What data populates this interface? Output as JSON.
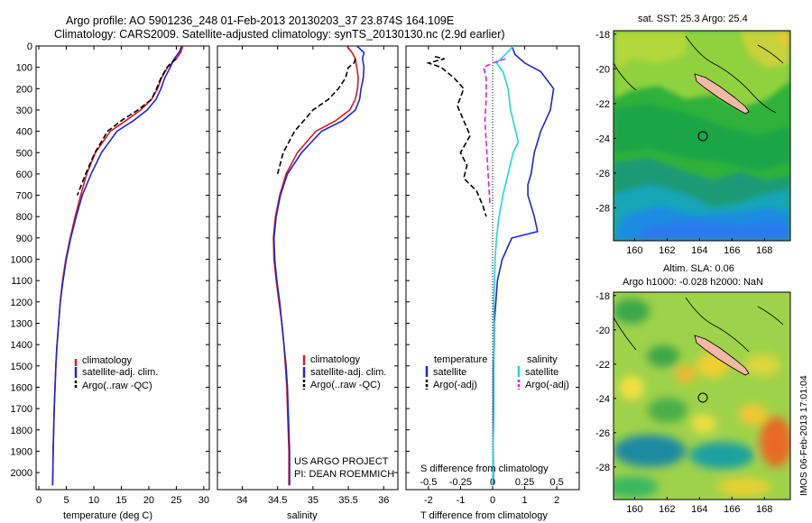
{
  "header": {
    "line1": "Argo profile: AO 5901236_248 01-Feb-2013 20130203_37 23.874S 164.109E",
    "line2": "Climatology: CARS2009. Satellite-adjusted climatology: synTS_20130130.nc (2.9d earlier)"
  },
  "credit": {
    "line1": "US ARGO PROJECT",
    "line2": "PI: DEAN ROEMMICH",
    "imos": "IMOS 06-Feb-2013 17:01:04"
  },
  "colors": {
    "climatology": "#e8141c",
    "satellite": "#1e24d8",
    "argo": "#000000",
    "sat_salinity": "#1ad8e0",
    "argo_salinity": "#e020e0"
  },
  "chart_data": [
    {
      "type": "line",
      "panel": "temperature",
      "xlabel": "temperature (deg C)",
      "ylim": [
        2080,
        0
      ],
      "xlim": [
        -0.5,
        31
      ],
      "xticks": [
        0,
        5,
        10,
        15,
        20,
        25,
        30
      ],
      "yticks": [
        0,
        100,
        200,
        300,
        400,
        500,
        600,
        700,
        800,
        900,
        1000,
        1100,
        1200,
        1300,
        1400,
        1500,
        1600,
        1700,
        1800,
        1900,
        2000
      ],
      "legend": [
        "climatology",
        "satellite-adj. clim.",
        "Argo(..raw -QC)"
      ],
      "series": [
        {
          "name": "climatology",
          "x": [
            26.2,
            25.8,
            25.0,
            23.4,
            22.3,
            21.6,
            20.5,
            18.5,
            15.8,
            13.0,
            10.3,
            8.7,
            7.6,
            6.6,
            5.7,
            4.9,
            4.3,
            3.9,
            3.6,
            3.3,
            3.1,
            2.95,
            2.8,
            2.7,
            2.6,
            2.55,
            2.5
          ],
          "y": [
            0,
            30,
            60,
            100,
            150,
            200,
            250,
            300,
            350,
            400,
            500,
            600,
            700,
            800,
            900,
            1000,
            1100,
            1200,
            1300,
            1400,
            1500,
            1600,
            1700,
            1800,
            1900,
            2000,
            2060
          ]
        },
        {
          "name": "satellite-adj. clim.",
          "x": [
            26.0,
            25.5,
            24.6,
            23.9,
            22.9,
            22.2,
            21.3,
            19.7,
            17.2,
            14.2,
            11.4,
            9.5,
            7.9,
            6.8,
            5.8,
            5.0,
            4.4,
            3.9,
            3.6,
            3.3,
            3.1,
            2.95,
            2.8,
            2.7,
            2.6,
            2.55,
            2.5
          ],
          "y": [
            0,
            30,
            60,
            100,
            150,
            200,
            250,
            300,
            350,
            400,
            500,
            600,
            700,
            800,
            900,
            1000,
            1100,
            1200,
            1300,
            1400,
            1500,
            1600,
            1700,
            1800,
            1900,
            2000,
            2060
          ]
        },
        {
          "name": "Argo(..raw -QC)",
          "x": [
            25.0,
            24.0,
            23.3,
            22.2,
            21.4,
            20.5,
            18.0,
            15.0,
            12.5,
            10.2,
            8.5,
            7.0
          ],
          "y": [
            60,
            80,
            100,
            150,
            200,
            250,
            300,
            350,
            400,
            500,
            600,
            700
          ]
        }
      ]
    },
    {
      "type": "line",
      "panel": "salinity",
      "xlabel": "salinity",
      "ylim": [
        2080,
        0
      ],
      "xlim": [
        33.65,
        36.2
      ],
      "xticks": [
        34,
        34.5,
        35,
        35.5,
        36
      ],
      "legend": [
        "climatology",
        "satellite-adj. clim.",
        "Argo(..raw -QC)"
      ],
      "series": [
        {
          "name": "climatology",
          "x": [
            35.48,
            35.55,
            35.6,
            35.62,
            35.64,
            35.63,
            35.6,
            35.52,
            35.32,
            35.04,
            34.78,
            34.62,
            34.53,
            34.47,
            34.44,
            34.45,
            34.48,
            34.52,
            34.56,
            34.59,
            34.61,
            34.63,
            34.64,
            34.65,
            34.66,
            34.66,
            34.66
          ],
          "y": [
            0,
            30,
            60,
            100,
            150,
            200,
            250,
            300,
            350,
            400,
            500,
            600,
            700,
            800,
            900,
            1000,
            1100,
            1200,
            1300,
            1400,
            1500,
            1600,
            1700,
            1800,
            1900,
            2000,
            2060
          ]
        },
        {
          "name": "satellite-adj. clim.",
          "x": [
            35.62,
            35.72,
            35.7,
            35.72,
            35.71,
            35.68,
            35.66,
            35.6,
            35.42,
            35.12,
            34.84,
            34.64,
            34.54,
            34.48,
            34.45,
            34.46,
            34.49,
            34.53,
            34.56,
            34.59,
            34.62,
            34.64,
            34.65,
            34.66,
            34.67,
            34.67,
            34.67
          ],
          "y": [
            0,
            30,
            60,
            100,
            150,
            200,
            250,
            300,
            350,
            400,
            500,
            600,
            700,
            800,
            900,
            1000,
            1100,
            1200,
            1300,
            1400,
            1500,
            1600,
            1700,
            1800,
            1900,
            2000,
            2060
          ]
        },
        {
          "name": "Argo(..raw -QC)",
          "x": [
            35.6,
            35.58,
            35.5,
            35.46,
            35.36,
            35.22,
            35.0,
            34.74,
            34.58,
            34.5
          ],
          "y": [
            60,
            80,
            100,
            150,
            200,
            250,
            300,
            400,
            500,
            600
          ]
        }
      ]
    },
    {
      "type": "line",
      "panel": "difference",
      "xlabel": "T difference from climatology",
      "xlabel_top": "S difference from climatology",
      "ylim": [
        2080,
        0
      ],
      "xlim": [
        -2.7,
        2.7
      ],
      "xticks": [
        -2,
        -1,
        0,
        1,
        2
      ],
      "xticks_top_values": [
        -0.5,
        -0.25,
        0,
        0.25,
        0.5
      ],
      "xticks_top_labels": [
        "-0.5",
        "-0.25",
        "0",
        "0.25",
        "0.5"
      ],
      "legend_left_title": "temperature",
      "legend_right_title": "salinity",
      "legend": [
        "satellite",
        "Argo(-adj)",
        "satellite",
        "Argo(-adj)"
      ],
      "series": [
        {
          "name": "satellite",
          "quantity": "T",
          "x": [
            0.6,
            0.7,
            1.0,
            1.5,
            1.9,
            1.8,
            1.5,
            1.3,
            1.2,
            1.1,
            1.1,
            1.2,
            1.3,
            1.4,
            0.6,
            0.3,
            0.15,
            0.1,
            0.05,
            0.05,
            0.02,
            0.02,
            0.02,
            0.02
          ],
          "y": [
            0,
            40,
            80,
            120,
            200,
            300,
            400,
            500,
            600,
            650,
            700,
            750,
            800,
            870,
            900,
            1000,
            1100,
            1200,
            1300,
            1400,
            1500,
            1700,
            1900,
            2060
          ]
        },
        {
          "name": "Argo(-adj)",
          "quantity": "T",
          "x": [
            -1.8,
            -1.5,
            -2.0,
            -1.6,
            -1.2,
            -0.9,
            -1.1,
            -0.9,
            -0.7,
            -1.0,
            -0.8,
            -0.9,
            -0.5,
            -0.3,
            -0.2
          ],
          "y": [
            50,
            60,
            80,
            100,
            150,
            200,
            280,
            350,
            420,
            500,
            560,
            620,
            680,
            750,
            800
          ]
        },
        {
          "name": "satellite",
          "quantity": "S",
          "x": [
            0.16,
            0.1,
            0.03,
            0.08,
            0.12,
            0.14,
            0.18,
            0.2,
            0.16,
            0.12,
            0.08,
            0.05,
            0.03,
            0.02,
            0.01,
            0.01,
            0.01,
            0.0
          ],
          "y": [
            0,
            40,
            80,
            120,
            200,
            300,
            400,
            450,
            500,
            600,
            700,
            800,
            900,
            1000,
            1200,
            1400,
            1700,
            2060
          ]
        },
        {
          "name": "Argo(-adj)",
          "quantity": "S",
          "x": [
            0.1,
            0.0,
            -0.07,
            -0.05,
            -0.05,
            -0.06,
            -0.05,
            -0.04,
            -0.03,
            -0.02
          ],
          "y": [
            60,
            80,
            100,
            150,
            250,
            350,
            450,
            550,
            650,
            750
          ]
        }
      ]
    },
    {
      "type": "heatmap",
      "panel": "sst-map",
      "title": "sat. SST: 25.3  Argo: 25.4",
      "xticks": [
        160,
        162,
        164,
        166,
        168
      ],
      "yticks": [
        -18,
        -20,
        -22,
        -24,
        -26,
        -28
      ],
      "float_position": [
        164.109,
        -23.874
      ]
    },
    {
      "type": "heatmap",
      "panel": "sla-map",
      "title_line1": "Altim. SLA: 0.06",
      "title_line2": "Argo h1000: -0.028  h2000: NaN",
      "xticks": [
        160,
        162,
        164,
        166,
        168
      ],
      "yticks": [
        -18,
        -20,
        -22,
        -24,
        -26,
        -28
      ],
      "float_position": [
        164.109,
        -23.874
      ]
    }
  ]
}
